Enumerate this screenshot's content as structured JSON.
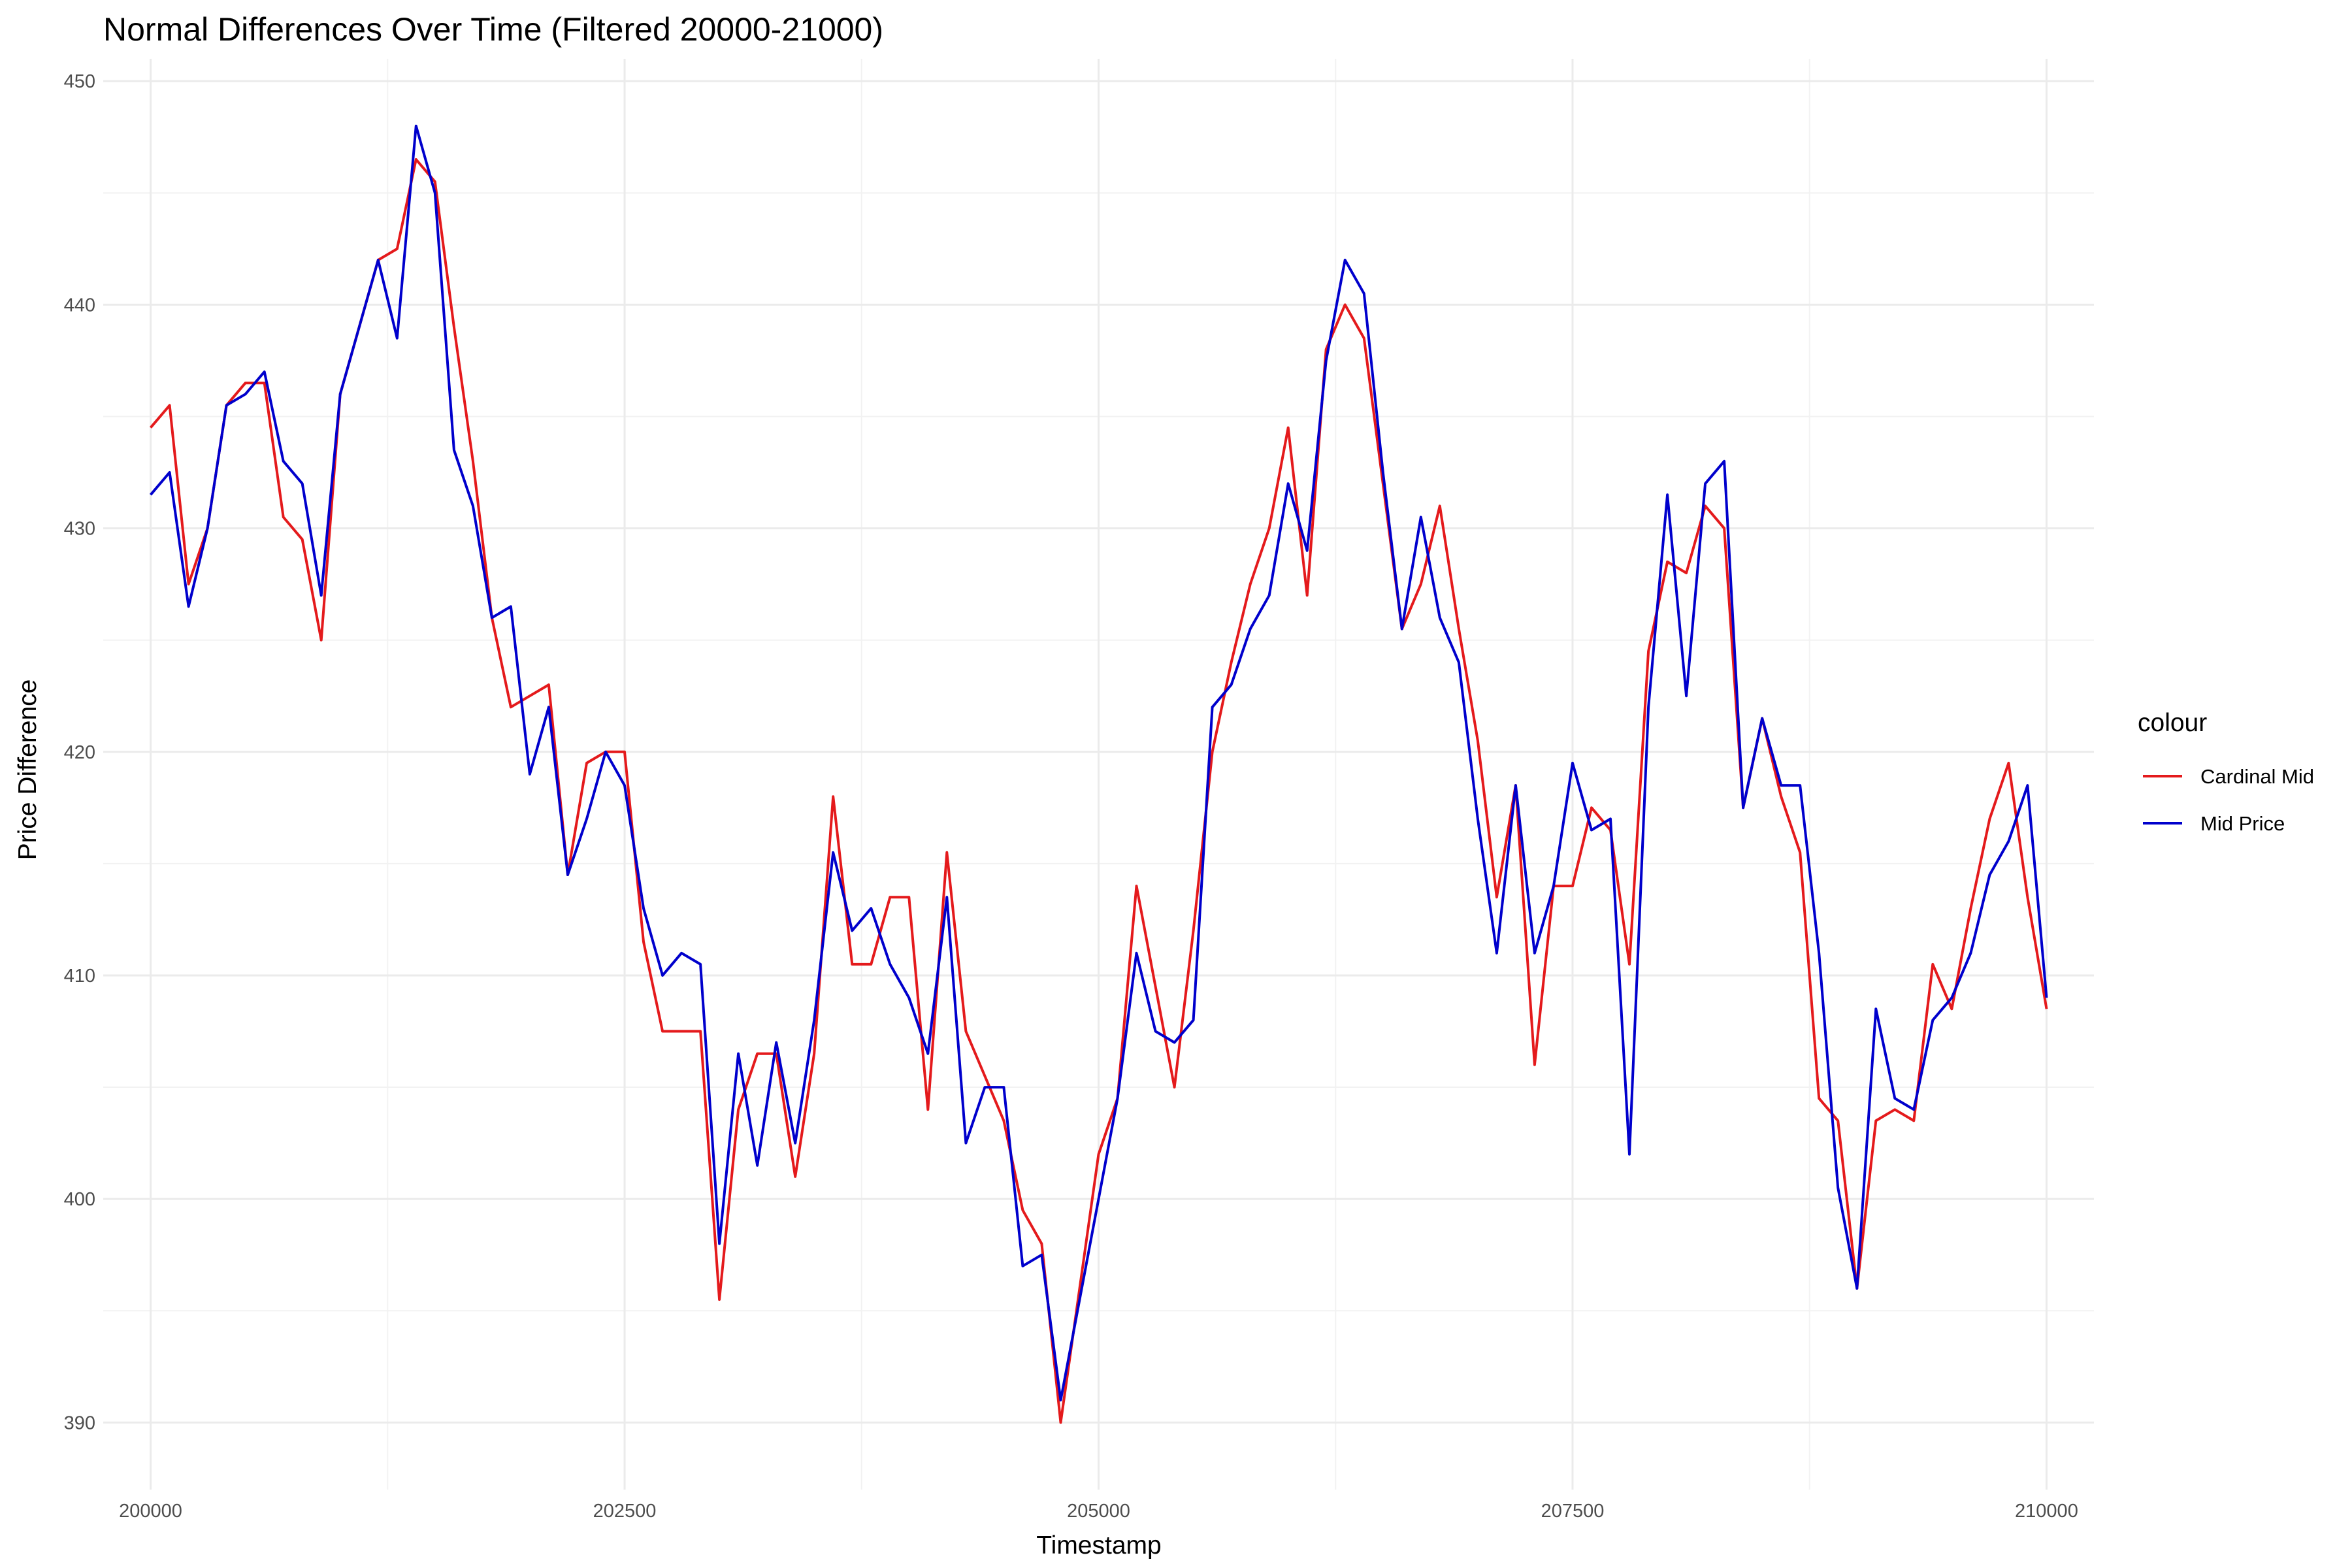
{
  "chart_data": {
    "type": "line",
    "title": "Normal Differences Over Time (Filtered 20000-21000)",
    "xlabel": "Timestamp",
    "ylabel": "Price Difference",
    "xlim": [
      199750,
      210250
    ],
    "ylim": [
      387,
      451
    ],
    "x_ticks": [
      200000,
      202500,
      205000,
      207500,
      210000
    ],
    "x_tick_labels": [
      "200000",
      "202500",
      "205000",
      "207500",
      "210000"
    ],
    "y_ticks": [
      390,
      400,
      410,
      420,
      430,
      440,
      450
    ],
    "y_tick_labels": [
      "390",
      "400",
      "410",
      "420",
      "430",
      "440",
      "450"
    ],
    "grid": true,
    "legend": {
      "title": "colour",
      "position": "right"
    },
    "x": [
      200000,
      200100,
      200200,
      200300,
      200400,
      200500,
      200600,
      200700,
      200800,
      200900,
      201000,
      201100,
      201200,
      201300,
      201400,
      201500,
      201600,
      201700,
      201800,
      201900,
      202000,
      202100,
      202200,
      202300,
      202400,
      202500,
      202600,
      202700,
      202800,
      202900,
      203000,
      203100,
      203200,
      203300,
      203400,
      203500,
      203600,
      203700,
      203800,
      203900,
      204000,
      204100,
      204200,
      204300,
      204400,
      204500,
      204600,
      204700,
      204800,
      204900,
      205000,
      205100,
      205200,
      205300,
      205400,
      205500,
      205600,
      205700,
      205800,
      205900,
      206000,
      206100,
      206200,
      206300,
      206400,
      206500,
      206600,
      206700,
      206800,
      206900,
      207000,
      207100,
      207200,
      207300,
      207400,
      207500,
      207600,
      207700,
      207800,
      207900,
      208000,
      208100,
      208200,
      208300,
      208400,
      208500,
      208600,
      208700,
      208800,
      208900,
      209000,
      209100,
      209200,
      209300,
      209400,
      209500,
      209600,
      209700,
      209800,
      209900,
      210000
    ],
    "series": [
      {
        "name": "Cardinal Mid",
        "color": "#e41a1c",
        "values": [
          434.5,
          435.5,
          427.5,
          430,
          435.5,
          436.5,
          436.5,
          430.5,
          429.5,
          425,
          436,
          439,
          442,
          442.5,
          446.5,
          445.5,
          439,
          433,
          426,
          422,
          422.5,
          423,
          414.5,
          419.5,
          420,
          420,
          411.5,
          407.5,
          407.5,
          407.5,
          395.5,
          404,
          406.5,
          406.5,
          401,
          406.5,
          418,
          410.5,
          410.5,
          413.5,
          413.5,
          404,
          415.5,
          407.5,
          405.5,
          403.5,
          399.5,
          398,
          390,
          396,
          402,
          404.5,
          414,
          409.5,
          405,
          412,
          420,
          424,
          427.5,
          430,
          434.5,
          427,
          438,
          440,
          438.5,
          432,
          425.5,
          427.5,
          431,
          425.5,
          420.5,
          413.5,
          418.5,
          406,
          414,
          414,
          417.5,
          416.5,
          410.5,
          424.5,
          428.5,
          428,
          431,
          430,
          417.5,
          421.5,
          418,
          415.5,
          404.5,
          403.5,
          396,
          403.5,
          404,
          403.5,
          410.5,
          408.5,
          413,
          417,
          419.5,
          413.5,
          408.5
        ]
      },
      {
        "name": "Mid Price",
        "color": "#0000cc",
        "values": [
          431.5,
          432.5,
          426.5,
          430,
          435.5,
          436,
          437,
          433,
          432,
          427,
          436,
          439,
          442,
          438.5,
          448,
          445,
          433.5,
          431,
          426,
          426.5,
          419,
          422,
          414.5,
          417,
          420,
          418.5,
          413,
          410,
          411,
          410.5,
          398,
          406.5,
          401.5,
          407,
          402.5,
          408,
          415.5,
          412,
          413,
          410.5,
          409,
          406.5,
          413.5,
          402.5,
          405,
          405,
          397,
          397.5,
          391,
          395.5,
          400,
          404.5,
          411,
          407.5,
          407,
          408,
          422,
          423,
          425.5,
          427,
          432,
          429,
          437.5,
          442,
          440.5,
          432.5,
          425.5,
          430.5,
          426,
          424,
          417,
          411,
          418.5,
          411,
          414,
          419.5,
          416.5,
          417,
          402,
          422,
          431.5,
          422.5,
          432,
          433,
          417.5,
          421.5,
          418.5,
          418.5,
          411,
          400.5,
          396,
          408.5,
          404.5,
          404,
          408,
          409,
          411,
          414.5,
          416,
          418.5,
          409
        ]
      }
    ]
  }
}
